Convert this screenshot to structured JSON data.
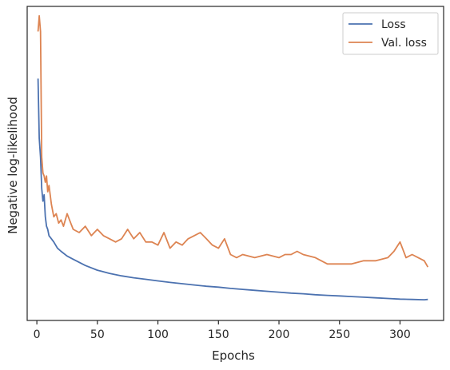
{
  "chart_data": {
    "type": "line",
    "title": "",
    "xlabel": "Epochs",
    "ylabel": "Negative log-likelihood",
    "xlim": [
      -8,
      336
    ],
    "ylim": [
      0,
      100
    ],
    "x_ticks": [
      0,
      50,
      100,
      150,
      200,
      250,
      300
    ],
    "x_tick_labels": [
      "0",
      "50",
      "100",
      "150",
      "200",
      "250",
      "300"
    ],
    "y_ticks_labeled": false,
    "grid": false,
    "legend_position": "top-right",
    "series": [
      {
        "name": "Loss",
        "color": "#4c72b0",
        "points": [
          [
            1,
            77
          ],
          [
            2,
            58
          ],
          [
            3,
            52
          ],
          [
            4,
            42
          ],
          [
            5,
            38
          ],
          [
            6,
            40
          ],
          [
            7,
            33
          ],
          [
            8,
            30
          ],
          [
            9,
            29
          ],
          [
            10,
            27
          ],
          [
            12,
            26
          ],
          [
            14,
            25
          ],
          [
            17,
            23
          ],
          [
            20,
            22
          ],
          [
            25,
            20.5
          ],
          [
            30,
            19.5
          ],
          [
            40,
            17.5
          ],
          [
            50,
            16
          ],
          [
            60,
            15
          ],
          [
            70,
            14.2
          ],
          [
            80,
            13.6
          ],
          [
            90,
            13.1
          ],
          [
            100,
            12.6
          ],
          [
            110,
            12.1
          ],
          [
            120,
            11.7
          ],
          [
            130,
            11.3
          ],
          [
            140,
            10.9
          ],
          [
            150,
            10.6
          ],
          [
            160,
            10.2
          ],
          [
            170,
            9.9
          ],
          [
            180,
            9.6
          ],
          [
            190,
            9.3
          ],
          [
            200,
            9.0
          ],
          [
            210,
            8.7
          ],
          [
            220,
            8.5
          ],
          [
            230,
            8.2
          ],
          [
            240,
            8.0
          ],
          [
            250,
            7.8
          ],
          [
            260,
            7.6
          ],
          [
            270,
            7.4
          ],
          [
            280,
            7.2
          ],
          [
            290,
            7.0
          ],
          [
            300,
            6.8
          ],
          [
            310,
            6.7
          ],
          [
            320,
            6.6
          ],
          [
            323,
            6.7
          ]
        ]
      },
      {
        "name": "Val. loss",
        "color": "#dd8452",
        "points": [
          [
            1,
            92
          ],
          [
            2,
            97
          ],
          [
            3,
            92
          ],
          [
            4,
            52
          ],
          [
            5,
            47
          ],
          [
            6,
            46
          ],
          [
            7,
            44
          ],
          [
            8,
            46
          ],
          [
            9,
            41
          ],
          [
            10,
            43
          ],
          [
            12,
            37
          ],
          [
            14,
            33
          ],
          [
            16,
            34
          ],
          [
            18,
            31
          ],
          [
            20,
            32
          ],
          [
            22,
            30
          ],
          [
            25,
            34
          ],
          [
            28,
            31
          ],
          [
            30,
            29
          ],
          [
            35,
            28
          ],
          [
            40,
            30
          ],
          [
            45,
            27
          ],
          [
            50,
            29
          ],
          [
            55,
            27
          ],
          [
            60,
            26
          ],
          [
            65,
            25
          ],
          [
            70,
            26
          ],
          [
            75,
            29
          ],
          [
            80,
            26
          ],
          [
            85,
            28
          ],
          [
            90,
            25
          ],
          [
            95,
            25
          ],
          [
            100,
            24
          ],
          [
            105,
            28
          ],
          [
            110,
            23
          ],
          [
            115,
            25
          ],
          [
            120,
            24
          ],
          [
            125,
            26
          ],
          [
            130,
            27
          ],
          [
            135,
            28
          ],
          [
            140,
            26
          ],
          [
            145,
            24
          ],
          [
            150,
            23
          ],
          [
            155,
            26
          ],
          [
            160,
            21
          ],
          [
            165,
            20
          ],
          [
            170,
            21
          ],
          [
            180,
            20
          ],
          [
            190,
            21
          ],
          [
            200,
            20
          ],
          [
            205,
            21
          ],
          [
            210,
            21
          ],
          [
            215,
            22
          ],
          [
            220,
            21
          ],
          [
            230,
            20
          ],
          [
            240,
            18
          ],
          [
            250,
            18
          ],
          [
            260,
            18
          ],
          [
            270,
            19
          ],
          [
            280,
            19
          ],
          [
            290,
            20
          ],
          [
            295,
            22
          ],
          [
            300,
            25
          ],
          [
            305,
            20
          ],
          [
            310,
            21
          ],
          [
            315,
            20
          ],
          [
            320,
            19
          ],
          [
            323,
            17
          ]
        ]
      }
    ]
  }
}
